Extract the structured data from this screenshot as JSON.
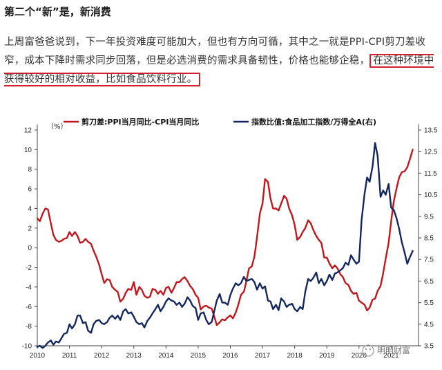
{
  "article": {
    "heading": "第二个“新”是，新消费",
    "para_before": "上周富爸爸说到，下一年投资难度可能加大，但也有方向可循，其中之一就是PPI-CPI剪刀差收窄，成本下降时需求同步回落，但是必选消费的需求具备韧性，价格也能够企稳，",
    "para_highlight": "在这种环境中获得较好的相对收益，比如食品饮料行业。"
  },
  "watermark": "明明财富",
  "chart_data": {
    "type": "line",
    "unit_label": "（%）",
    "x_ticks": [
      "2010",
      "2011",
      "2012",
      "2013",
      "2014",
      "2015",
      "2016",
      "2017",
      "2018",
      "2019",
      "2020",
      "2021"
    ],
    "y_left": {
      "ticks": [
        "12",
        "10",
        "8",
        "6",
        "4",
        "2",
        "0",
        "-2",
        "-4",
        "-6",
        "-8",
        "-10"
      ],
      "range": [
        -10,
        12
      ]
    },
    "y_right": {
      "ticks": [
        "13.5",
        "12.5",
        "11.5",
        "10.5",
        "9.5",
        "8.5",
        "7.5",
        "6.5",
        "5.5",
        "4.5",
        "3.5"
      ],
      "range": [
        3.5,
        13.5
      ]
    },
    "colors": {
      "series1": "#c0171d",
      "series2": "#13275e"
    },
    "series": [
      {
        "name": "剪刀差:PPI当月同比-CPI当月同比",
        "axis": "left",
        "points": [
          [
            2010.0,
            3.0
          ],
          [
            2010.08,
            2.7
          ],
          [
            2010.17,
            3.5
          ],
          [
            2010.25,
            4.0
          ],
          [
            2010.33,
            3.9
          ],
          [
            2010.42,
            2.5
          ],
          [
            2010.5,
            1.3
          ],
          [
            2010.58,
            0.8
          ],
          [
            2010.67,
            0.6
          ],
          [
            2010.75,
            0.7
          ],
          [
            2010.83,
            0.9
          ],
          [
            2010.92,
            1.0
          ],
          [
            2011.0,
            1.6
          ],
          [
            2011.08,
            1.2
          ],
          [
            2011.17,
            1.6
          ],
          [
            2011.25,
            1.2
          ],
          [
            2011.33,
            0.5
          ],
          [
            2011.42,
            0.6
          ],
          [
            2011.5,
            0.9
          ],
          [
            2011.58,
            0.6
          ],
          [
            2011.67,
            0.4
          ],
          [
            2011.75,
            -0.3
          ],
          [
            2011.83,
            -0.9
          ],
          [
            2011.92,
            -1.7
          ],
          [
            2012.0,
            -2.7
          ],
          [
            2012.08,
            -3.6
          ],
          [
            2012.17,
            -3.2
          ],
          [
            2012.25,
            -3.3
          ],
          [
            2012.33,
            -4.0
          ],
          [
            2012.42,
            -4.3
          ],
          [
            2012.5,
            -4.5
          ],
          [
            2012.58,
            -5.5
          ],
          [
            2012.67,
            -5.2
          ],
          [
            2012.75,
            -4.6
          ],
          [
            2012.83,
            -4.2
          ],
          [
            2012.92,
            -4.3
          ],
          [
            2013.0,
            -3.5
          ],
          [
            2013.08,
            -4.8
          ],
          [
            2013.17,
            -4.0
          ],
          [
            2013.25,
            -4.3
          ],
          [
            2013.33,
            -4.9
          ],
          [
            2013.42,
            -5.1
          ],
          [
            2013.5,
            -5.0
          ],
          [
            2013.58,
            -4.2
          ],
          [
            2013.67,
            -4.3
          ],
          [
            2013.75,
            -4.7
          ],
          [
            2013.83,
            -4.4
          ],
          [
            2013.92,
            -4.8
          ],
          [
            2014.0,
            -4.1
          ],
          [
            2014.08,
            -4.0
          ],
          [
            2014.17,
            -4.6
          ],
          [
            2014.25,
            -4.1
          ],
          [
            2014.33,
            -3.5
          ],
          [
            2014.42,
            -3.5
          ],
          [
            2014.5,
            -3.2
          ],
          [
            2014.58,
            -3.0
          ],
          [
            2014.67,
            -3.4
          ],
          [
            2014.75,
            -3.9
          ],
          [
            2014.83,
            -4.2
          ],
          [
            2014.92,
            -4.8
          ],
          [
            2015.0,
            -5.1
          ],
          [
            2015.08,
            -6.3
          ],
          [
            2015.17,
            -6.0
          ],
          [
            2015.25,
            -5.9
          ],
          [
            2015.33,
            -6.1
          ],
          [
            2015.42,
            -6.2
          ],
          [
            2015.5,
            -7.0
          ],
          [
            2015.58,
            -7.9
          ],
          [
            2015.67,
            -7.6
          ],
          [
            2015.75,
            -7.3
          ],
          [
            2015.83,
            -7.4
          ],
          [
            2015.92,
            -7.1
          ],
          [
            2016.0,
            -6.9
          ],
          [
            2016.08,
            -7.2
          ],
          [
            2016.17,
            -6.6
          ],
          [
            2016.25,
            -5.8
          ],
          [
            2016.33,
            -4.8
          ],
          [
            2016.42,
            -4.5
          ],
          [
            2016.5,
            -3.4
          ],
          [
            2016.58,
            -2.1
          ],
          [
            2016.67,
            -1.9
          ],
          [
            2016.75,
            -0.9
          ],
          [
            2016.83,
            1.1
          ],
          [
            2016.92,
            3.5
          ],
          [
            2017.0,
            4.5
          ],
          [
            2017.08,
            7.0
          ],
          [
            2017.17,
            6.7
          ],
          [
            2017.25,
            5.0
          ],
          [
            2017.33,
            4.0
          ],
          [
            2017.42,
            4.0
          ],
          [
            2017.5,
            3.8
          ],
          [
            2017.58,
            4.5
          ],
          [
            2017.67,
            5.3
          ],
          [
            2017.75,
            5.0
          ],
          [
            2017.83,
            4.0
          ],
          [
            2017.92,
            3.3
          ],
          [
            2018.0,
            2.3
          ],
          [
            2018.08,
            0.8
          ],
          [
            2018.17,
            1.1
          ],
          [
            2018.25,
            1.6
          ],
          [
            2018.33,
            2.0
          ],
          [
            2018.42,
            2.8
          ],
          [
            2018.5,
            2.5
          ],
          [
            2018.58,
            1.8
          ],
          [
            2018.67,
            1.2
          ],
          [
            2018.75,
            0.8
          ],
          [
            2018.83,
            0.5
          ],
          [
            2018.92,
            -1.0
          ],
          [
            2019.0,
            -1.0
          ],
          [
            2019.08,
            -1.6
          ],
          [
            2019.17,
            -2.1
          ],
          [
            2019.25,
            -1.8
          ],
          [
            2019.33,
            -2.1
          ],
          [
            2019.42,
            -2.7
          ],
          [
            2019.5,
            -3.0
          ],
          [
            2019.58,
            -3.6
          ],
          [
            2019.67,
            -3.8
          ],
          [
            2019.75,
            -4.4
          ],
          [
            2019.83,
            -4.7
          ],
          [
            2019.92,
            -4.6
          ],
          [
            2020.0,
            -5.4
          ],
          [
            2020.08,
            -5.6
          ],
          [
            2020.17,
            -5.8
          ],
          [
            2020.25,
            -6.4
          ],
          [
            2020.33,
            -6.1
          ],
          [
            2020.42,
            -5.3
          ],
          [
            2020.5,
            -5.2
          ],
          [
            2020.58,
            -4.4
          ],
          [
            2020.67,
            -3.9
          ],
          [
            2020.75,
            -2.6
          ],
          [
            2020.83,
            -1.1
          ],
          [
            2020.92,
            0.5
          ],
          [
            2021.0,
            2.7
          ],
          [
            2021.08,
            4.7
          ],
          [
            2021.17,
            6.1
          ],
          [
            2021.25,
            7.2
          ],
          [
            2021.33,
            7.7
          ],
          [
            2021.42,
            7.8
          ],
          [
            2021.5,
            8.2
          ],
          [
            2021.58,
            9.0
          ],
          [
            2021.67,
            10.0
          ]
        ]
      },
      {
        "name": "指数比值:食品加工指数/万得全A(右)",
        "axis": "right",
        "points": [
          [
            2010.0,
            3.45
          ],
          [
            2010.08,
            3.5
          ],
          [
            2010.17,
            3.4
          ],
          [
            2010.25,
            3.5
          ],
          [
            2010.33,
            3.65
          ],
          [
            2010.42,
            3.75
          ],
          [
            2010.5,
            3.55
          ],
          [
            2010.58,
            3.7
          ],
          [
            2010.67,
            3.65
          ],
          [
            2010.75,
            3.85
          ],
          [
            2010.83,
            4.05
          ],
          [
            2010.92,
            4.1
          ],
          [
            2011.0,
            4.5
          ],
          [
            2011.08,
            4.3
          ],
          [
            2011.17,
            4.5
          ],
          [
            2011.25,
            4.9
          ],
          [
            2011.33,
            4.9
          ],
          [
            2011.42,
            4.55
          ],
          [
            2011.5,
            4.6
          ],
          [
            2011.58,
            4.2
          ],
          [
            2011.67,
            4.1
          ],
          [
            2011.75,
            4.5
          ],
          [
            2011.83,
            4.65
          ],
          [
            2011.92,
            4.7
          ],
          [
            2012.0,
            4.55
          ],
          [
            2012.08,
            4.5
          ],
          [
            2012.17,
            4.6
          ],
          [
            2012.25,
            4.8
          ],
          [
            2012.33,
            4.9
          ],
          [
            2012.42,
            4.75
          ],
          [
            2012.5,
            4.9
          ],
          [
            2012.58,
            4.7
          ],
          [
            2012.67,
            5.1
          ],
          [
            2012.75,
            5.2
          ],
          [
            2012.83,
            5.0
          ],
          [
            2012.92,
            5.05
          ],
          [
            2013.0,
            4.85
          ],
          [
            2013.08,
            4.6
          ],
          [
            2013.17,
            4.5
          ],
          [
            2013.25,
            4.55
          ],
          [
            2013.33,
            4.35
          ],
          [
            2013.42,
            4.65
          ],
          [
            2013.5,
            4.8
          ],
          [
            2013.58,
            5.0
          ],
          [
            2013.67,
            5.2
          ],
          [
            2013.75,
            5.4
          ],
          [
            2013.83,
            5.1
          ],
          [
            2013.92,
            5.3
          ],
          [
            2014.0,
            5.55
          ],
          [
            2014.08,
            5.7
          ],
          [
            2014.17,
            5.6
          ],
          [
            2014.25,
            5.55
          ],
          [
            2014.33,
            5.4
          ],
          [
            2014.42,
            5.5
          ],
          [
            2014.5,
            5.3
          ],
          [
            2014.58,
            5.45
          ],
          [
            2014.67,
            5.75
          ],
          [
            2014.75,
            5.6
          ],
          [
            2014.83,
            5.35
          ],
          [
            2014.92,
            5.25
          ],
          [
            2015.0,
            4.7
          ],
          [
            2015.08,
            5.0
          ],
          [
            2015.17,
            5.05
          ],
          [
            2015.25,
            4.7
          ],
          [
            2015.33,
            4.5
          ],
          [
            2015.42,
            4.6
          ],
          [
            2015.5,
            5.1
          ],
          [
            2015.58,
            5.6
          ],
          [
            2015.67,
            5.9
          ],
          [
            2015.75,
            5.5
          ],
          [
            2015.83,
            5.5
          ],
          [
            2015.92,
            5.4
          ],
          [
            2016.0,
            5.85
          ],
          [
            2016.08,
            6.15
          ],
          [
            2016.17,
            6.4
          ],
          [
            2016.25,
            6.3
          ],
          [
            2016.33,
            6.4
          ],
          [
            2016.42,
            6.7
          ],
          [
            2016.5,
            6.5
          ],
          [
            2016.58,
            6.55
          ],
          [
            2016.67,
            6.6
          ],
          [
            2016.75,
            6.45
          ],
          [
            2016.83,
            6.1
          ],
          [
            2016.92,
            6.4
          ],
          [
            2017.0,
            6.15
          ],
          [
            2017.08,
            6.25
          ],
          [
            2017.17,
            5.6
          ],
          [
            2017.25,
            5.55
          ],
          [
            2017.33,
            5.2
          ],
          [
            2017.42,
            5.4
          ],
          [
            2017.5,
            5.15
          ],
          [
            2017.58,
            5.7
          ],
          [
            2017.67,
            5.55
          ],
          [
            2017.75,
            5.3
          ],
          [
            2017.83,
            5.4
          ],
          [
            2017.92,
            5.45
          ],
          [
            2018.0,
            5.2
          ],
          [
            2018.08,
            5.1
          ],
          [
            2018.17,
            5.3
          ],
          [
            2018.25,
            5.2
          ],
          [
            2018.33,
            6.0
          ],
          [
            2018.42,
            6.6
          ],
          [
            2018.5,
            6.5
          ],
          [
            2018.58,
            6.65
          ],
          [
            2018.67,
            6.9
          ],
          [
            2018.75,
            6.4
          ],
          [
            2018.83,
            6.6
          ],
          [
            2018.92,
            6.3
          ],
          [
            2019.0,
            6.5
          ],
          [
            2019.08,
            6.8
          ],
          [
            2019.17,
            6.55
          ],
          [
            2019.25,
            6.85
          ],
          [
            2019.33,
            6.9
          ],
          [
            2019.42,
            7.0
          ],
          [
            2019.5,
            7.1
          ],
          [
            2019.58,
            7.35
          ],
          [
            2019.67,
            7.25
          ],
          [
            2019.75,
            7.7
          ],
          [
            2019.83,
            7.5
          ],
          [
            2019.92,
            7.3
          ],
          [
            2020.0,
            7.4
          ],
          [
            2020.08,
            9.3
          ],
          [
            2020.17,
            10.5
          ],
          [
            2020.25,
            11.3
          ],
          [
            2020.33,
            11.1
          ],
          [
            2020.42,
            11.8
          ],
          [
            2020.5,
            12.9
          ],
          [
            2020.58,
            12.3
          ],
          [
            2020.67,
            10.4
          ],
          [
            2020.75,
            10.7
          ],
          [
            2020.83,
            10.5
          ],
          [
            2020.92,
            11.0
          ],
          [
            2021.0,
            9.9
          ],
          [
            2021.08,
            9.8
          ],
          [
            2021.17,
            9.4
          ],
          [
            2021.25,
            8.9
          ],
          [
            2021.33,
            8.3
          ],
          [
            2021.42,
            7.8
          ],
          [
            2021.5,
            7.3
          ],
          [
            2021.58,
            7.6
          ],
          [
            2021.67,
            7.9
          ]
        ]
      }
    ]
  }
}
